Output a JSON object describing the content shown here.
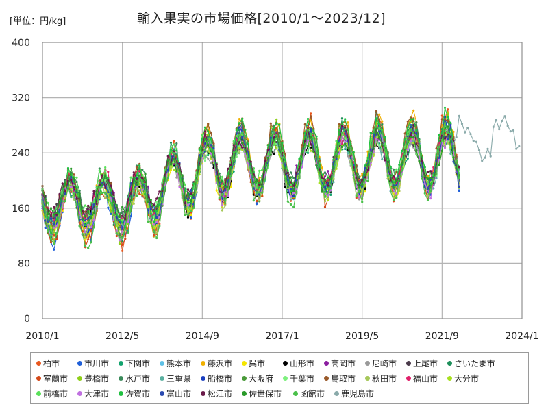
{
  "chart_data": {
    "type": "line",
    "title": "輸入果実の市場価格[2010/1～2023/12]",
    "unit_label": "[単位：円/kg]",
    "xlabel": "",
    "ylabel": "",
    "ylim": [
      0,
      400
    ],
    "yticks": [
      0,
      80,
      160,
      240,
      320,
      400
    ],
    "xlim": [
      "2010/1",
      "2024/1"
    ],
    "xticks": [
      "2010/1",
      "2012/5",
      "2014/9",
      "2017/1",
      "2019/5",
      "2021/9",
      "2024/1"
    ],
    "grid": true,
    "legend_position": "bottom",
    "series": [
      {
        "name": "柏市",
        "color": "#e8571e"
      },
      {
        "name": "市川市",
        "color": "#1f5fd8"
      },
      {
        "name": "下関市",
        "color": "#13a36e"
      },
      {
        "name": "熊本市",
        "color": "#5ec0e6"
      },
      {
        "name": "藤沢市",
        "color": "#f0b000"
      },
      {
        "name": "呉市",
        "color": "#f5e600"
      },
      {
        "name": "山形市",
        "color": "#000000"
      },
      {
        "name": "高岡市",
        "color": "#8b1fa0"
      },
      {
        "name": "尼崎市",
        "color": "#9a9a9a"
      },
      {
        "name": "上尾市",
        "color": "#4a3a4a"
      },
      {
        "name": "さいたま市",
        "color": "#1d8f5a"
      },
      {
        "name": "室蘭市",
        "color": "#d44a1a"
      },
      {
        "name": "豊橋市",
        "color": "#8fcf1a"
      },
      {
        "name": "水戸市",
        "color": "#3a8a5a"
      },
      {
        "name": "三重県",
        "color": "#5ab0a0"
      },
      {
        "name": "船橋市",
        "color": "#1a3fc0"
      },
      {
        "name": "大阪府",
        "color": "#4a9a3a"
      },
      {
        "name": "千葉市",
        "color": "#7ef07e"
      },
      {
        "name": "鳥取市",
        "color": "#9a5a2a"
      },
      {
        "name": "秋田市",
        "color": "#a6c85a"
      },
      {
        "name": "福山市",
        "color": "#e0206a"
      },
      {
        "name": "大分市",
        "color": "#a8e020"
      },
      {
        "name": "前橋市",
        "color": "#5ae05a"
      },
      {
        "name": "大津市",
        "color": "#c070e0"
      },
      {
        "name": "佐賀市",
        "color": "#20c040"
      },
      {
        "name": "富山市",
        "color": "#2a4ab0"
      },
      {
        "name": "松江市",
        "color": "#6a1a4a"
      },
      {
        "name": "佐世保市",
        "color": "#2a9a2a"
      },
      {
        "name": "函館市",
        "color": "#4ac04a"
      },
      {
        "name": "鹿児島市",
        "color": "#8aaaaa"
      }
    ]
  }
}
